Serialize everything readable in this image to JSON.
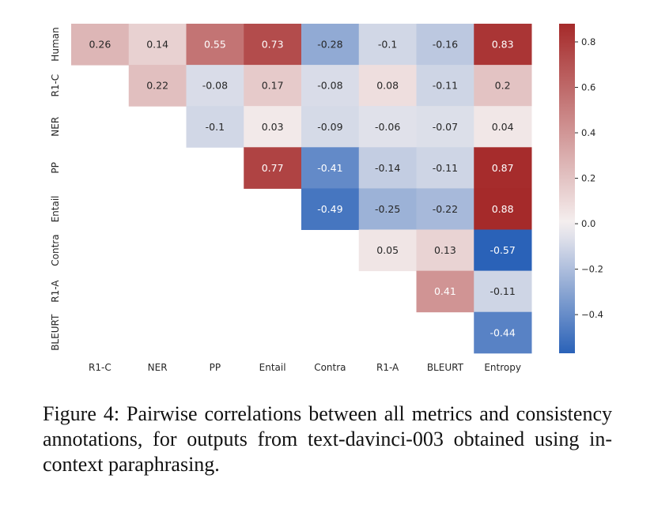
{
  "caption": "Figure 4: Pairwise correlations between all metrics and consistency annotations, for outputs from text-davinci-003 obtained using in-context paraphrasing.",
  "chart_data": {
    "type": "heatmap",
    "row_labels": [
      "Human",
      "R1-C",
      "NER",
      "PP",
      "Entail",
      "Contra",
      "R1-A",
      "BLEURT"
    ],
    "col_labels": [
      "R1-C",
      "NER",
      "PP",
      "Entail",
      "Contra",
      "R1-A",
      "BLEURT",
      "Entropy"
    ],
    "values": [
      [
        0.26,
        0.14,
        0.55,
        0.73,
        -0.28,
        -0.1,
        -0.16,
        0.83
      ],
      [
        null,
        0.22,
        -0.08,
        0.17,
        -0.08,
        0.08,
        -0.11,
        0.2
      ],
      [
        null,
        null,
        -0.1,
        0.03,
        -0.09,
        -0.06,
        -0.07,
        0.04
      ],
      [
        null,
        null,
        null,
        0.77,
        -0.41,
        -0.14,
        -0.11,
        0.87
      ],
      [
        null,
        null,
        null,
        null,
        -0.49,
        -0.25,
        -0.22,
        0.88
      ],
      [
        null,
        null,
        null,
        null,
        null,
        0.05,
        0.13,
        -0.57
      ],
      [
        null,
        null,
        null,
        null,
        null,
        null,
        0.41,
        -0.11
      ],
      [
        null,
        null,
        null,
        null,
        null,
        null,
        null,
        -0.44
      ]
    ],
    "colorbar": {
      "vmin": -0.57,
      "vmax": 0.88,
      "ticks": [
        0.8,
        0.6,
        0.4,
        0.2,
        0.0,
        -0.2,
        -0.4
      ],
      "tick_labels": [
        "0.8",
        "0.6",
        "0.4",
        "0.2",
        "0.0",
        "−0.2",
        "−0.4"
      ],
      "colormap": "vlag",
      "color_low": "#2a62b8",
      "color_mid": "#f5f0f0",
      "color_high": "#a52a2a"
    }
  }
}
